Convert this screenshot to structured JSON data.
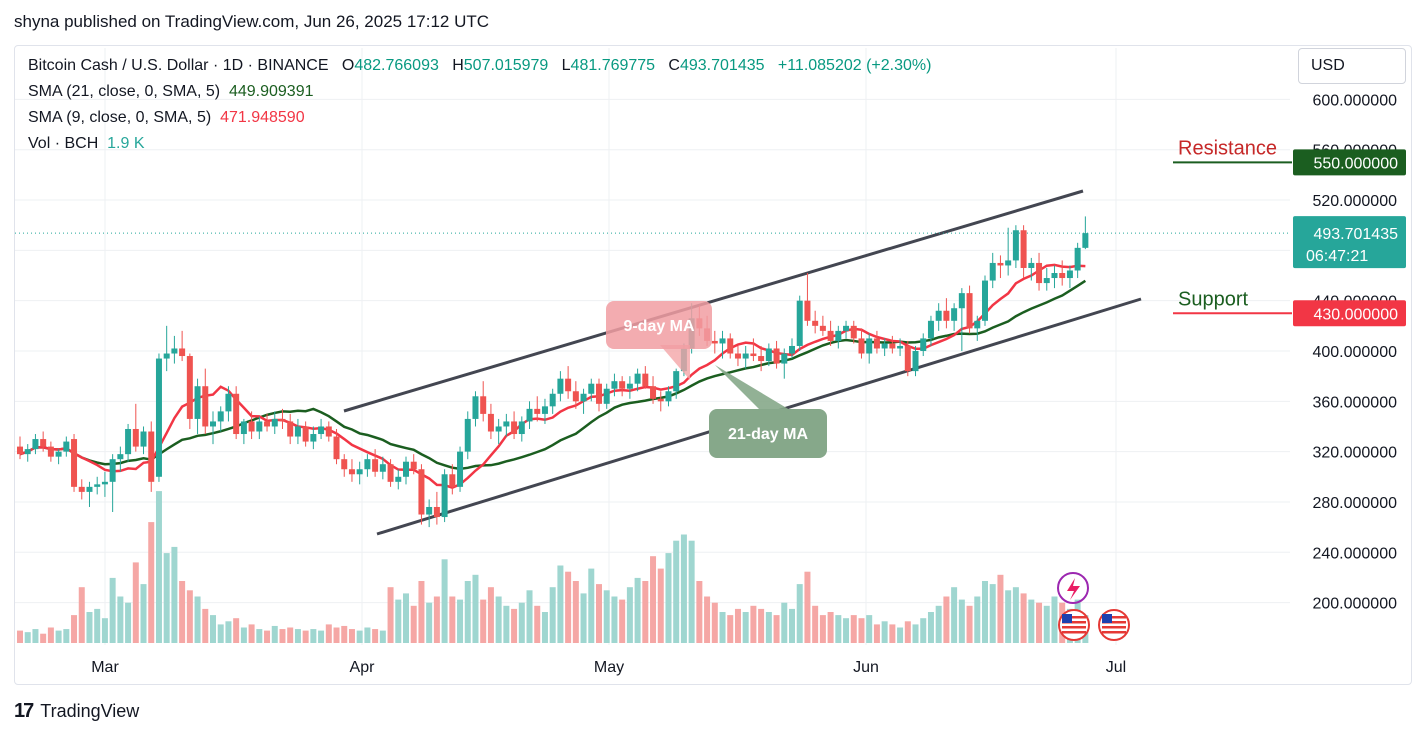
{
  "header": {
    "published": "shyna published on TradingView.com, Jun 26, 2025 17:12 UTC"
  },
  "legend": {
    "symbol": "Bitcoin Cash / U.S. Dollar · 1D · BINANCE",
    "o_label": "O",
    "o_value": "482.766093",
    "h_label": "H",
    "h_value": "507.015979",
    "l_label": "L",
    "l_value": "481.769775",
    "c_label": "C",
    "c_value": "493.701435",
    "change": "+11.085202 (+2.30%)",
    "sma21_label": "SMA (21, close, 0, SMA, 5)",
    "sma21_value": "449.909391",
    "sma9_label": "SMA (9, close, 0, SMA, 5)",
    "sma9_value": "471.948590",
    "vol_label": "Vol · BCH",
    "vol_value": "1.9 K"
  },
  "currency_button": "USD",
  "footer": {
    "brand": "TradingView",
    "logo": "17"
  },
  "colors": {
    "up": "#26a69a",
    "down": "#ef5350",
    "sma9": "#f23645",
    "sma21": "#1b5e20",
    "channel": "#434651",
    "resistance": "#c62828",
    "support": "#1b5e20",
    "vol_up": "#9fd6d0",
    "vol_down": "#f5a7a5",
    "grid": "#eef0f3"
  },
  "chart_data": {
    "type": "candlestick",
    "y_axis": {
      "ticks": [
        200,
        240,
        280,
        320,
        360,
        400,
        440,
        480,
        520,
        560,
        600
      ],
      "tick_labels": [
        "200.000000",
        "240.000000",
        "280.000000",
        "320.000000",
        "360.000000",
        "400.000000",
        "440.000000",
        "480.000000",
        "520.000000",
        "560.000000",
        "600.000000"
      ],
      "range": [
        160,
        640
      ]
    },
    "x_axis": {
      "labels": [
        "Mar",
        "Apr",
        "May",
        "Jun",
        "Jul"
      ]
    },
    "price_tags": [
      {
        "label": "Resistance",
        "value_text": "550.000000",
        "value": 550,
        "color": "#1b5e20"
      },
      {
        "label": "Support",
        "value_text": "430.000000",
        "value": 430,
        "color": "#f23645"
      }
    ],
    "last_price": {
      "value": 493.701435,
      "value_text": "493.701435",
      "countdown": "06:47:21"
    },
    "annotations": [
      {
        "text": "9-day MA"
      },
      {
        "text": "21-day MA"
      }
    ],
    "candles": [
      {
        "o": 324,
        "h": 332,
        "l": 314,
        "c": 318,
        "v": 8
      },
      {
        "o": 318,
        "h": 326,
        "l": 312,
        "c": 322,
        "v": 7
      },
      {
        "o": 322,
        "h": 334,
        "l": 318,
        "c": 330,
        "v": 9
      },
      {
        "o": 330,
        "h": 336,
        "l": 320,
        "c": 324,
        "v": 6
      },
      {
        "o": 324,
        "h": 328,
        "l": 312,
        "c": 316,
        "v": 10
      },
      {
        "o": 316,
        "h": 322,
        "l": 310,
        "c": 320,
        "v": 8
      },
      {
        "o": 320,
        "h": 332,
        "l": 316,
        "c": 328,
        "v": 9
      },
      {
        "o": 330,
        "h": 334,
        "l": 288,
        "c": 292,
        "v": 18
      },
      {
        "o": 292,
        "h": 298,
        "l": 282,
        "c": 288,
        "v": 36
      },
      {
        "o": 288,
        "h": 296,
        "l": 276,
        "c": 292,
        "v": 20
      },
      {
        "o": 292,
        "h": 300,
        "l": 286,
        "c": 294,
        "v": 22
      },
      {
        "o": 294,
        "h": 304,
        "l": 284,
        "c": 296,
        "v": 16
      },
      {
        "o": 296,
        "h": 318,
        "l": 272,
        "c": 314,
        "v": 42
      },
      {
        "o": 314,
        "h": 324,
        "l": 304,
        "c": 318,
        "v": 30
      },
      {
        "o": 318,
        "h": 342,
        "l": 312,
        "c": 338,
        "v": 26
      },
      {
        "o": 338,
        "h": 358,
        "l": 320,
        "c": 324,
        "v": 52
      },
      {
        "o": 324,
        "h": 340,
        "l": 318,
        "c": 336,
        "v": 38
      },
      {
        "o": 336,
        "h": 344,
        "l": 288,
        "c": 296,
        "v": 78
      },
      {
        "o": 300,
        "h": 398,
        "l": 296,
        "c": 394,
        "v": 98
      },
      {
        "o": 394,
        "h": 420,
        "l": 384,
        "c": 398,
        "v": 58
      },
      {
        "o": 398,
        "h": 412,
        "l": 390,
        "c": 402,
        "v": 62
      },
      {
        "o": 402,
        "h": 416,
        "l": 392,
        "c": 396,
        "v": 40
      },
      {
        "o": 396,
        "h": 398,
        "l": 338,
        "c": 346,
        "v": 34
      },
      {
        "o": 346,
        "h": 378,
        "l": 334,
        "c": 372,
        "v": 30
      },
      {
        "o": 372,
        "h": 386,
        "l": 334,
        "c": 340,
        "v": 22
      },
      {
        "o": 340,
        "h": 352,
        "l": 326,
        "c": 344,
        "v": 18
      },
      {
        "o": 344,
        "h": 356,
        "l": 336,
        "c": 352,
        "v": 12
      },
      {
        "o": 352,
        "h": 372,
        "l": 344,
        "c": 366,
        "v": 14
      },
      {
        "o": 366,
        "h": 372,
        "l": 330,
        "c": 334,
        "v": 16
      },
      {
        "o": 334,
        "h": 346,
        "l": 326,
        "c": 344,
        "v": 10
      },
      {
        "o": 344,
        "h": 352,
        "l": 330,
        "c": 336,
        "v": 12
      },
      {
        "o": 336,
        "h": 348,
        "l": 330,
        "c": 344,
        "v": 9
      },
      {
        "o": 344,
        "h": 350,
        "l": 336,
        "c": 340,
        "v": 8
      },
      {
        "o": 340,
        "h": 352,
        "l": 334,
        "c": 346,
        "v": 11
      },
      {
        "o": 346,
        "h": 354,
        "l": 338,
        "c": 344,
        "v": 9
      },
      {
        "o": 344,
        "h": 350,
        "l": 326,
        "c": 332,
        "v": 10
      },
      {
        "o": 332,
        "h": 346,
        "l": 326,
        "c": 340,
        "v": 9
      },
      {
        "o": 340,
        "h": 344,
        "l": 324,
        "c": 328,
        "v": 8
      },
      {
        "o": 328,
        "h": 340,
        "l": 322,
        "c": 334,
        "v": 9
      },
      {
        "o": 334,
        "h": 346,
        "l": 330,
        "c": 340,
        "v": 8
      },
      {
        "o": 340,
        "h": 344,
        "l": 328,
        "c": 332,
        "v": 12
      },
      {
        "o": 332,
        "h": 338,
        "l": 310,
        "c": 314,
        "v": 10
      },
      {
        "o": 314,
        "h": 318,
        "l": 300,
        "c": 306,
        "v": 11
      },
      {
        "o": 306,
        "h": 314,
        "l": 296,
        "c": 302,
        "v": 9
      },
      {
        "o": 302,
        "h": 312,
        "l": 294,
        "c": 306,
        "v": 8
      },
      {
        "o": 306,
        "h": 318,
        "l": 300,
        "c": 314,
        "v": 10
      },
      {
        "o": 314,
        "h": 322,
        "l": 300,
        "c": 304,
        "v": 9
      },
      {
        "o": 304,
        "h": 316,
        "l": 298,
        "c": 310,
        "v": 8
      },
      {
        "o": 310,
        "h": 314,
        "l": 292,
        "c": 296,
        "v": 36
      },
      {
        "o": 296,
        "h": 306,
        "l": 290,
        "c": 300,
        "v": 28
      },
      {
        "o": 300,
        "h": 316,
        "l": 294,
        "c": 312,
        "v": 32
      },
      {
        "o": 312,
        "h": 318,
        "l": 302,
        "c": 306,
        "v": 24
      },
      {
        "o": 306,
        "h": 310,
        "l": 262,
        "c": 270,
        "v": 40
      },
      {
        "o": 270,
        "h": 282,
        "l": 260,
        "c": 276,
        "v": 26
      },
      {
        "o": 276,
        "h": 288,
        "l": 262,
        "c": 268,
        "v": 30
      },
      {
        "o": 268,
        "h": 306,
        "l": 264,
        "c": 302,
        "v": 54
      },
      {
        "o": 302,
        "h": 310,
        "l": 286,
        "c": 292,
        "v": 30
      },
      {
        "o": 292,
        "h": 324,
        "l": 288,
        "c": 320,
        "v": 28
      },
      {
        "o": 320,
        "h": 352,
        "l": 314,
        "c": 346,
        "v": 40
      },
      {
        "o": 346,
        "h": 368,
        "l": 340,
        "c": 364,
        "v": 44
      },
      {
        "o": 364,
        "h": 376,
        "l": 344,
        "c": 350,
        "v": 28
      },
      {
        "o": 350,
        "h": 358,
        "l": 330,
        "c": 336,
        "v": 36
      },
      {
        "o": 336,
        "h": 346,
        "l": 326,
        "c": 340,
        "v": 30
      },
      {
        "o": 340,
        "h": 350,
        "l": 332,
        "c": 344,
        "v": 24
      },
      {
        "o": 344,
        "h": 352,
        "l": 330,
        "c": 334,
        "v": 22
      },
      {
        "o": 334,
        "h": 348,
        "l": 328,
        "c": 344,
        "v": 26
      },
      {
        "o": 344,
        "h": 360,
        "l": 338,
        "c": 354,
        "v": 34
      },
      {
        "o": 354,
        "h": 364,
        "l": 344,
        "c": 350,
        "v": 24
      },
      {
        "o": 350,
        "h": 362,
        "l": 342,
        "c": 356,
        "v": 20
      },
      {
        "o": 356,
        "h": 370,
        "l": 350,
        "c": 366,
        "v": 36
      },
      {
        "o": 366,
        "h": 384,
        "l": 360,
        "c": 378,
        "v": 50
      },
      {
        "o": 378,
        "h": 388,
        "l": 362,
        "c": 368,
        "v": 46
      },
      {
        "o": 368,
        "h": 376,
        "l": 354,
        "c": 360,
        "v": 40
      },
      {
        "o": 360,
        "h": 370,
        "l": 350,
        "c": 366,
        "v": 32
      },
      {
        "o": 366,
        "h": 378,
        "l": 360,
        "c": 374,
        "v": 48
      },
      {
        "o": 374,
        "h": 378,
        "l": 352,
        "c": 358,
        "v": 38
      },
      {
        "o": 358,
        "h": 374,
        "l": 354,
        "c": 370,
        "v": 34
      },
      {
        "o": 370,
        "h": 382,
        "l": 364,
        "c": 376,
        "v": 30
      },
      {
        "o": 376,
        "h": 380,
        "l": 364,
        "c": 370,
        "v": 28
      },
      {
        "o": 370,
        "h": 380,
        "l": 362,
        "c": 374,
        "v": 36
      },
      {
        "o": 374,
        "h": 386,
        "l": 368,
        "c": 382,
        "v": 42
      },
      {
        "o": 382,
        "h": 388,
        "l": 370,
        "c": 372,
        "v": 40
      },
      {
        "o": 372,
        "h": 380,
        "l": 358,
        "c": 362,
        "v": 56
      },
      {
        "o": 362,
        "h": 368,
        "l": 352,
        "c": 360,
        "v": 48
      },
      {
        "o": 360,
        "h": 372,
        "l": 356,
        "c": 368,
        "v": 58
      },
      {
        "o": 368,
        "h": 386,
        "l": 362,
        "c": 384,
        "v": 66
      },
      {
        "o": 384,
        "h": 406,
        "l": 380,
        "c": 402,
        "v": 70
      },
      {
        "o": 402,
        "h": 438,
        "l": 398,
        "c": 426,
        "v": 66
      },
      {
        "o": 426,
        "h": 436,
        "l": 412,
        "c": 418,
        "v": 40
      },
      {
        "o": 418,
        "h": 428,
        "l": 404,
        "c": 408,
        "v": 30
      },
      {
        "o": 408,
        "h": 416,
        "l": 398,
        "c": 406,
        "v": 26
      },
      {
        "o": 406,
        "h": 416,
        "l": 394,
        "c": 410,
        "v": 20
      },
      {
        "o": 410,
        "h": 414,
        "l": 394,
        "c": 398,
        "v": 18
      },
      {
        "o": 398,
        "h": 404,
        "l": 388,
        "c": 394,
        "v": 22
      },
      {
        "o": 394,
        "h": 404,
        "l": 386,
        "c": 398,
        "v": 20
      },
      {
        "o": 398,
        "h": 410,
        "l": 392,
        "c": 396,
        "v": 24
      },
      {
        "o": 396,
        "h": 404,
        "l": 384,
        "c": 392,
        "v": 22
      },
      {
        "o": 392,
        "h": 406,
        "l": 388,
        "c": 402,
        "v": 20
      },
      {
        "o": 402,
        "h": 408,
        "l": 386,
        "c": 390,
        "v": 18
      },
      {
        "o": 390,
        "h": 402,
        "l": 378,
        "c": 398,
        "v": 26
      },
      {
        "o": 398,
        "h": 410,
        "l": 394,
        "c": 404,
        "v": 22
      },
      {
        "o": 404,
        "h": 444,
        "l": 400,
        "c": 440,
        "v": 38
      },
      {
        "o": 440,
        "h": 462,
        "l": 420,
        "c": 424,
        "v": 46
      },
      {
        "o": 424,
        "h": 432,
        "l": 414,
        "c": 420,
        "v": 24
      },
      {
        "o": 420,
        "h": 428,
        "l": 412,
        "c": 416,
        "v": 18
      },
      {
        "o": 416,
        "h": 424,
        "l": 404,
        "c": 408,
        "v": 20
      },
      {
        "o": 408,
        "h": 420,
        "l": 402,
        "c": 416,
        "v": 18
      },
      {
        "o": 416,
        "h": 424,
        "l": 410,
        "c": 420,
        "v": 16
      },
      {
        "o": 420,
        "h": 424,
        "l": 406,
        "c": 410,
        "v": 18
      },
      {
        "o": 410,
        "h": 418,
        "l": 394,
        "c": 398,
        "v": 16
      },
      {
        "o": 398,
        "h": 414,
        "l": 390,
        "c": 410,
        "v": 18
      },
      {
        "o": 410,
        "h": 416,
        "l": 398,
        "c": 402,
        "v": 12
      },
      {
        "o": 402,
        "h": 410,
        "l": 396,
        "c": 406,
        "v": 14
      },
      {
        "o": 406,
        "h": 412,
        "l": 398,
        "c": 402,
        "v": 12
      },
      {
        "o": 402,
        "h": 410,
        "l": 396,
        "c": 404,
        "v": 10
      },
      {
        "o": 404,
        "h": 408,
        "l": 380,
        "c": 384,
        "v": 14
      },
      {
        "o": 384,
        "h": 404,
        "l": 380,
        "c": 400,
        "v": 12
      },
      {
        "o": 400,
        "h": 414,
        "l": 396,
        "c": 410,
        "v": 16
      },
      {
        "o": 410,
        "h": 428,
        "l": 404,
        "c": 424,
        "v": 20
      },
      {
        "o": 424,
        "h": 438,
        "l": 416,
        "c": 432,
        "v": 24
      },
      {
        "o": 432,
        "h": 442,
        "l": 418,
        "c": 424,
        "v": 30
      },
      {
        "o": 424,
        "h": 438,
        "l": 416,
        "c": 434,
        "v": 36
      },
      {
        "o": 434,
        "h": 450,
        "l": 400,
        "c": 446,
        "v": 28
      },
      {
        "o": 446,
        "h": 452,
        "l": 414,
        "c": 418,
        "v": 24
      },
      {
        "o": 418,
        "h": 428,
        "l": 408,
        "c": 424,
        "v": 30
      },
      {
        "o": 424,
        "h": 460,
        "l": 420,
        "c": 456,
        "v": 40
      },
      {
        "o": 456,
        "h": 478,
        "l": 450,
        "c": 470,
        "v": 38
      },
      {
        "o": 470,
        "h": 476,
        "l": 458,
        "c": 468,
        "v": 44
      },
      {
        "o": 468,
        "h": 498,
        "l": 460,
        "c": 472,
        "v": 34
      },
      {
        "o": 472,
        "h": 500,
        "l": 466,
        "c": 496,
        "v": 36
      },
      {
        "o": 496,
        "h": 500,
        "l": 458,
        "c": 466,
        "v": 32
      },
      {
        "o": 466,
        "h": 474,
        "l": 456,
        "c": 470,
        "v": 28
      },
      {
        "o": 470,
        "h": 478,
        "l": 448,
        "c": 454,
        "v": 26
      },
      {
        "o": 454,
        "h": 466,
        "l": 448,
        "c": 458,
        "v": 24
      },
      {
        "o": 458,
        "h": 468,
        "l": 450,
        "c": 462,
        "v": 30
      },
      {
        "o": 462,
        "h": 472,
        "l": 452,
        "c": 458,
        "v": 26
      },
      {
        "o": 458,
        "h": 468,
        "l": 450,
        "c": 464,
        "v": 22
      },
      {
        "o": 464,
        "h": 486,
        "l": 458,
        "c": 482,
        "v": 28
      },
      {
        "o": 482,
        "h": 507,
        "l": 481,
        "c": 493.7,
        "v": 18
      }
    ],
    "sma9": [],
    "sma21": []
  }
}
